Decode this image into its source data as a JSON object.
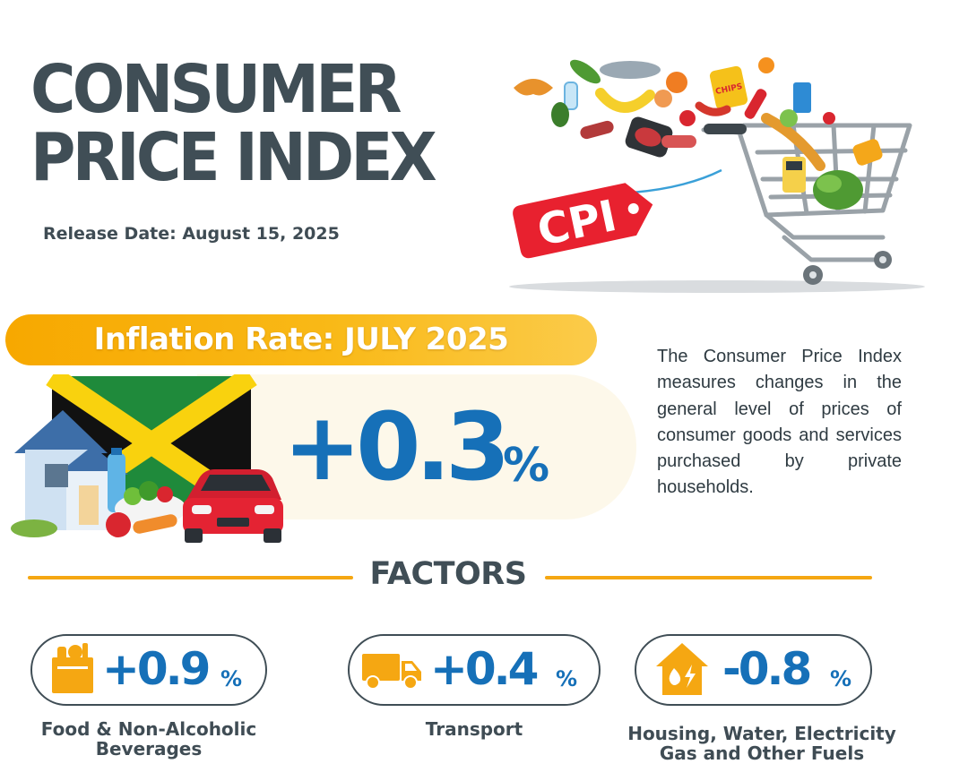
{
  "header": {
    "title_line1": "CONSUMER",
    "title_line2": "PRICE INDEX",
    "release_date": "Release Date: August 15, 2025"
  },
  "hero": {
    "tag_text": "CPI",
    "chips_text": "CHIPS",
    "icons": [
      "shopping-cart-icon",
      "price-tag-icon",
      "groceries-icon"
    ]
  },
  "inflation": {
    "banner": "Inflation Rate: JULY 2025",
    "value": "+0.3",
    "unit": "%",
    "icons": [
      "jamaica-flag-icon",
      "house-icon",
      "car-icon",
      "salad-icon",
      "water-bottle-icon"
    ]
  },
  "description": "The Consumer Price Index measures changes in the general level of prices of consumer goods and services purchased by private households.",
  "factors": {
    "heading": "FACTORS",
    "items": [
      {
        "icon": "grocery-bag-icon",
        "value": "+0.9",
        "unit": "%",
        "label_line1": "Food & Non-Alcoholic",
        "label_line2": "Beverages"
      },
      {
        "icon": "delivery-truck-icon",
        "value": "+0.4",
        "unit": "%",
        "label_line1": "Transport",
        "label_line2": ""
      },
      {
        "icon": "house-utilities-icon",
        "value": "-0.8",
        "unit": "%",
        "label_line1": "Housing, Water, Electricity",
        "label_line2": "Gas and Other Fuels"
      }
    ]
  },
  "colors": {
    "title": "#404e56",
    "accent_orange": "#f5a712",
    "value_blue": "#1670b8",
    "tag_red": "#e8212f"
  }
}
